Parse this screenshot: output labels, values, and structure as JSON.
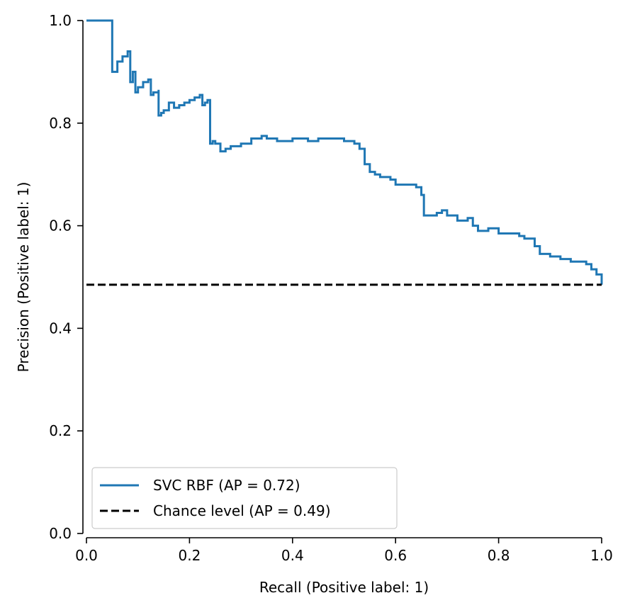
{
  "chart_data": {
    "type": "line",
    "xlabel": "Recall (Positive label: 1)",
    "ylabel": "Precision (Positive label: 1)",
    "xlim": [
      0.0,
      1.0
    ],
    "ylim": [
      0.0,
      1.0
    ],
    "x_ticks": [
      "0.0",
      "0.2",
      "0.4",
      "0.6",
      "0.8",
      "1.0"
    ],
    "y_ticks": [
      "0.0",
      "0.2",
      "0.4",
      "0.6",
      "0.8",
      "1.0"
    ],
    "grid": false,
    "legend_position": "lower-left",
    "series": [
      {
        "name": "SVC RBF (AP = 0.72)",
        "color": "#1f77b4",
        "style": "solid",
        "step": true,
        "x": [
          0.0,
          0.05,
          0.05,
          0.06,
          0.07,
          0.08,
          0.085,
          0.085,
          0.09,
          0.095,
          0.095,
          0.1,
          0.1,
          0.11,
          0.12,
          0.125,
          0.125,
          0.13,
          0.14,
          0.14,
          0.145,
          0.15,
          0.16,
          0.16,
          0.17,
          0.18,
          0.19,
          0.2,
          0.21,
          0.22,
          0.225,
          0.225,
          0.23,
          0.235,
          0.24,
          0.24,
          0.245,
          0.25,
          0.26,
          0.27,
          0.28,
          0.3,
          0.32,
          0.34,
          0.35,
          0.37,
          0.4,
          0.43,
          0.45,
          0.48,
          0.5,
          0.52,
          0.53,
          0.54,
          0.55,
          0.56,
          0.57,
          0.59,
          0.6,
          0.62,
          0.64,
          0.65,
          0.655,
          0.66,
          0.68,
          0.69,
          0.7,
          0.72,
          0.74,
          0.745,
          0.75,
          0.76,
          0.78,
          0.8,
          0.82,
          0.84,
          0.85,
          0.86,
          0.87,
          0.88,
          0.9,
          0.92,
          0.94,
          0.96,
          0.97,
          0.98,
          0.99,
          1.0
        ],
        "y": [
          1.0,
          1.0,
          0.9,
          0.92,
          0.93,
          0.94,
          0.94,
          0.88,
          0.9,
          0.9,
          0.86,
          0.86,
          0.87,
          0.88,
          0.885,
          0.885,
          0.855,
          0.86,
          0.865,
          0.815,
          0.82,
          0.825,
          0.83,
          0.84,
          0.83,
          0.835,
          0.84,
          0.845,
          0.85,
          0.855,
          0.855,
          0.835,
          0.84,
          0.845,
          0.82,
          0.76,
          0.765,
          0.76,
          0.745,
          0.75,
          0.755,
          0.76,
          0.77,
          0.775,
          0.77,
          0.765,
          0.77,
          0.765,
          0.77,
          0.77,
          0.765,
          0.76,
          0.75,
          0.72,
          0.705,
          0.7,
          0.695,
          0.69,
          0.68,
          0.68,
          0.675,
          0.66,
          0.62,
          0.62,
          0.625,
          0.63,
          0.62,
          0.61,
          0.615,
          0.615,
          0.6,
          0.59,
          0.595,
          0.585,
          0.585,
          0.58,
          0.575,
          0.575,
          0.56,
          0.545,
          0.54,
          0.535,
          0.53,
          0.53,
          0.525,
          0.515,
          0.505,
          0.485
        ]
      },
      {
        "name": "Chance level (AP = 0.49)",
        "color": "#000000",
        "style": "dashed",
        "step": false,
        "x": [
          0.0,
          1.0
        ],
        "y": [
          0.485,
          0.485
        ]
      }
    ]
  }
}
